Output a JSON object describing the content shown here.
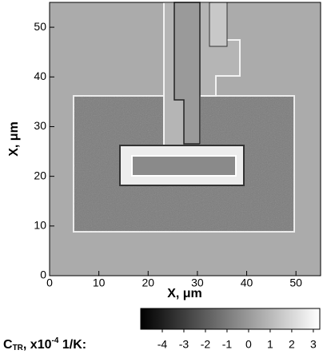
{
  "chart_data": {
    "type": "image",
    "xlabel": "X, μm",
    "ylabel": "X, μm",
    "xlim": [
      0,
      55
    ],
    "ylim": [
      0,
      55
    ],
    "xticks": [
      0,
      10,
      20,
      30,
      40,
      50
    ],
    "yticks": [
      0,
      10,
      20,
      30,
      40,
      50
    ],
    "colorbar": {
      "colors": [
        "#000000",
        "#ffffff"
      ],
      "clim": [
        -5,
        3.3
      ],
      "ticks": [
        -4,
        -3,
        -2,
        -1,
        0,
        1,
        2,
        3
      ],
      "label": [
        "C",
        "TR",
        ", x10",
        "-4",
        " 1/K:"
      ]
    }
  }
}
